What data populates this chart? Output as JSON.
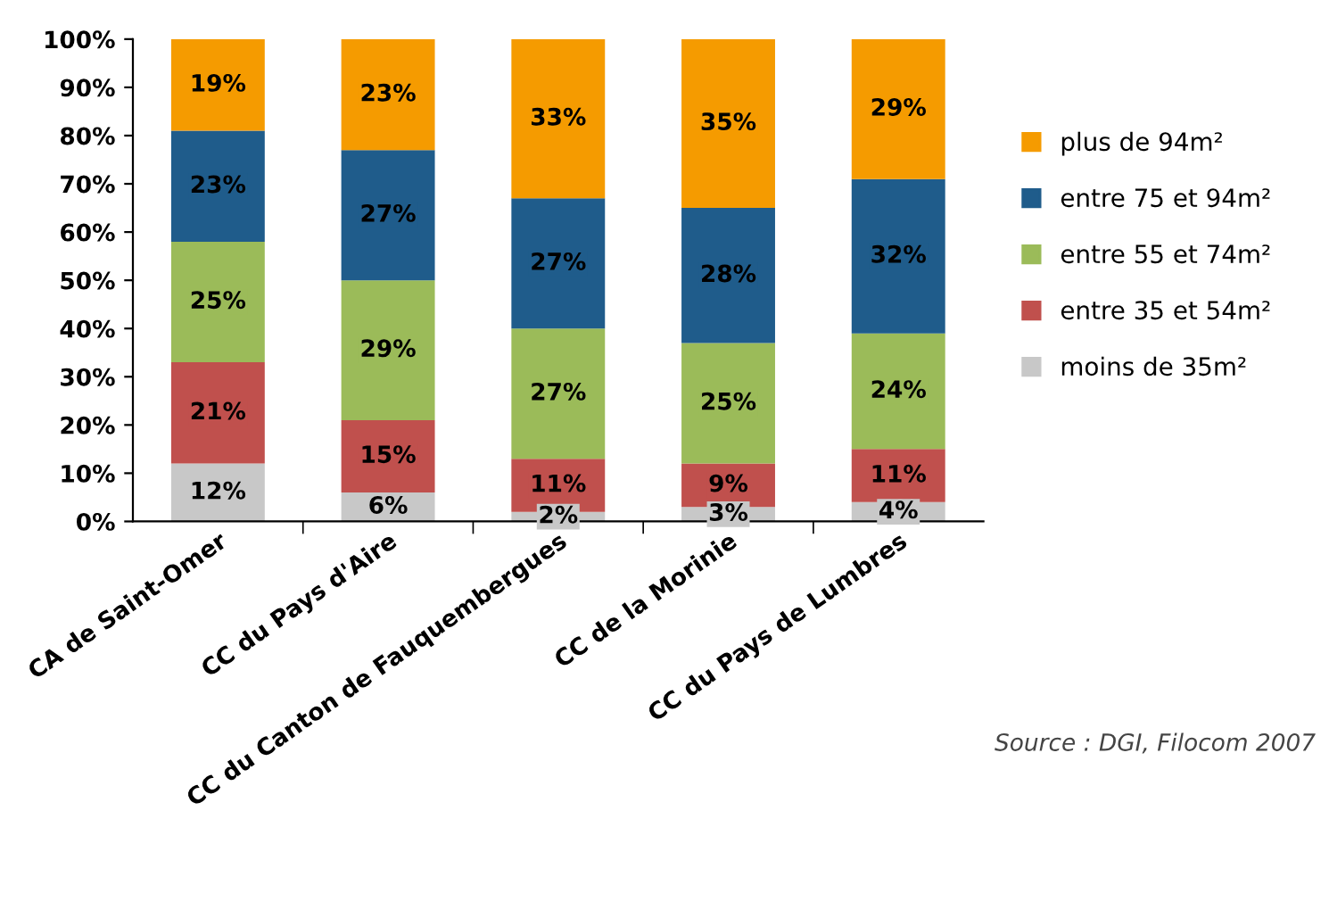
{
  "chart_data": {
    "type": "bar",
    "stacked": true,
    "categories": [
      "CA de Saint-Omer",
      "CC du Pays d'Aire",
      "CC du Canton de Fauquembergues",
      "CC de la Morinie",
      "CC du Pays de Lumbres"
    ],
    "series": [
      {
        "name": "moins de 35m²",
        "color": "#c8c8c8",
        "values": [
          12,
          6,
          2,
          3,
          4
        ],
        "value_labels": [
          "12%",
          "6%",
          "2%",
          "3%",
          "4%"
        ]
      },
      {
        "name": "entre 35 et 54m²",
        "color": "#c0504d",
        "values": [
          21,
          15,
          11,
          9,
          11
        ],
        "value_labels": [
          "21%",
          "15%",
          "11%",
          "9%",
          "11%"
        ]
      },
      {
        "name": "entre 55 et 74m²",
        "color": "#9bbb59",
        "values": [
          25,
          29,
          27,
          25,
          24
        ],
        "value_labels": [
          "25%",
          "29%",
          "27%",
          "25%",
          "24%"
        ]
      },
      {
        "name": "entre 75 et 94m²",
        "color": "#1f5c8b",
        "values": [
          23,
          27,
          27,
          28,
          32
        ],
        "value_labels": [
          "23%",
          "27%",
          "27%",
          "28%",
          "32%"
        ]
      },
      {
        "name": "plus de 94m²",
        "color": "#f59b00",
        "values": [
          19,
          23,
          33,
          35,
          29
        ],
        "value_labels": [
          "19%",
          "23%",
          "33%",
          "35%",
          "29%"
        ]
      }
    ],
    "ylim": [
      0,
      100
    ],
    "yticks": [
      {
        "value": 0,
        "label": "0%"
      },
      {
        "value": 10,
        "label": "10%"
      },
      {
        "value": 20,
        "label": "20%"
      },
      {
        "value": 30,
        "label": "30%"
      },
      {
        "value": 40,
        "label": "40%"
      },
      {
        "value": 50,
        "label": "50%"
      },
      {
        "value": 60,
        "label": "60%"
      },
      {
        "value": 70,
        "label": "70%"
      },
      {
        "value": 80,
        "label": "80%"
      },
      {
        "value": 90,
        "label": "90%"
      },
      {
        "value": 100,
        "label": "100%"
      }
    ],
    "grid": false,
    "legend": "right",
    "annotations": [
      "Source : DGI, Filocom 2007"
    ]
  }
}
